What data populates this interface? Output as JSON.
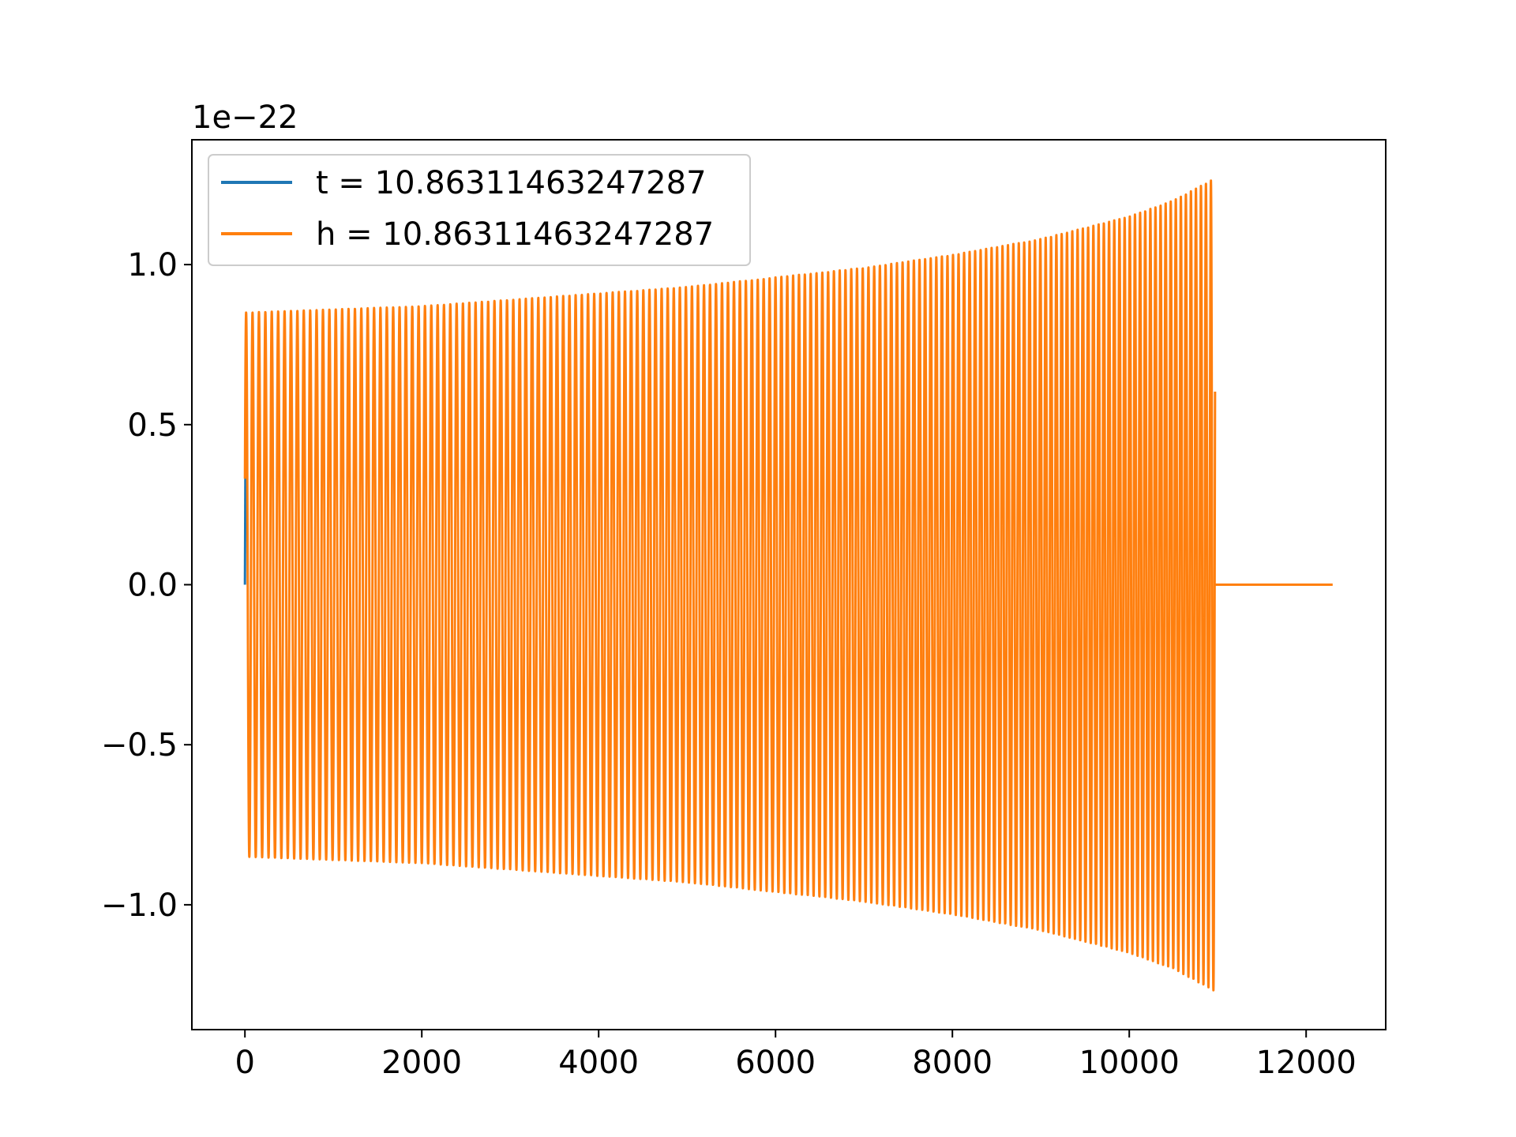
{
  "chart_data": {
    "type": "line",
    "title": "",
    "xlabel": "",
    "ylabel": "",
    "y_offset_text": "1e−22",
    "xlim": [
      -600,
      12900
    ],
    "ylim": [
      -1.39,
      1.39
    ],
    "x_ticks": [
      0,
      2000,
      4000,
      6000,
      8000,
      10000,
      12000
    ],
    "x_tick_labels": [
      "0",
      "2000",
      "4000",
      "6000",
      "8000",
      "10000",
      "12000"
    ],
    "y_ticks": [
      -1.0,
      -0.5,
      0.0,
      0.5,
      1.0
    ],
    "y_tick_labels": [
      "−1.0",
      "−0.5",
      "0.0",
      "0.5",
      "1.0"
    ],
    "grid": false,
    "legend_position": "top-left",
    "series": [
      {
        "name": "t = 10.86311463247287",
        "color": "#1f77b4",
        "description": "nearly identical chirp waveform, hidden beneath the orange series",
        "x": [
          0,
          10
        ],
        "y": [
          0.0,
          0.68
        ]
      },
      {
        "name": "h = 10.86311463247287",
        "color": "#ff7f0e",
        "description": "chirp: rapidly oscillating signal, envelope growing from 0.85 to 1.27, then zero until end",
        "envelope_x": [
          0,
          1000,
          2000,
          3000,
          4000,
          5000,
          6000,
          7000,
          8000,
          9000,
          10000,
          10500,
          10970
        ],
        "envelope_amplitude": [
          0.85,
          0.86,
          0.87,
          0.89,
          0.91,
          0.93,
          0.96,
          0.99,
          1.03,
          1.08,
          1.15,
          1.2,
          1.27
        ],
        "oscillation_end_x": 10970,
        "flat_segment": {
          "x": [
            10970,
            12300
          ],
          "y": [
            0.0,
            0.0
          ]
        }
      }
    ]
  }
}
